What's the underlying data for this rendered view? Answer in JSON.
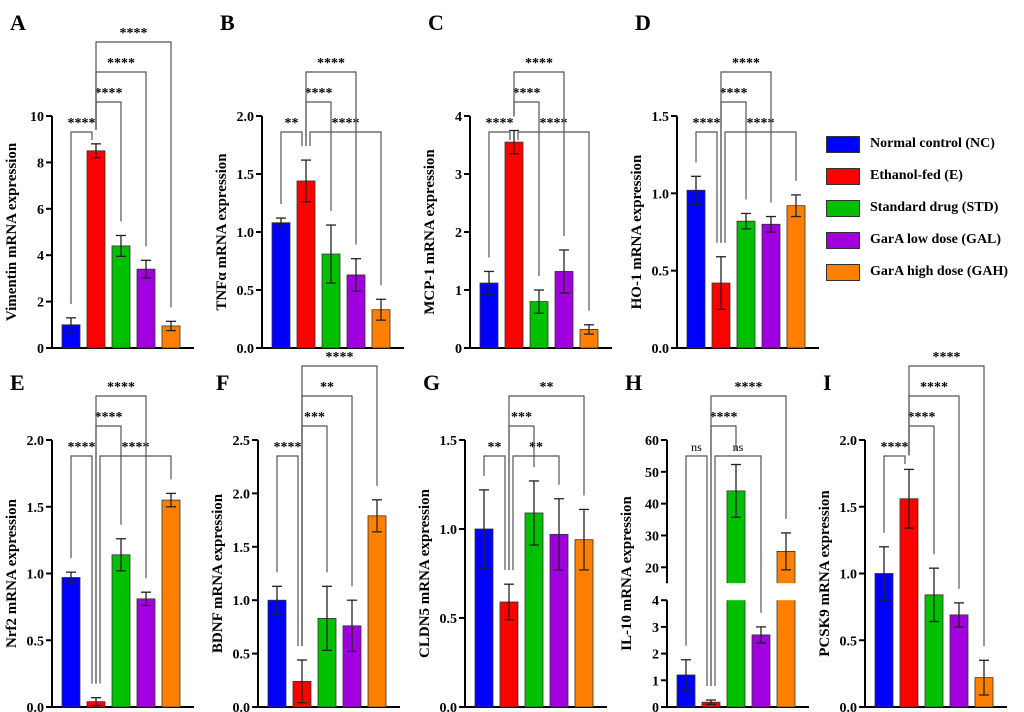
{
  "legend": [
    {
      "label": "Normal control (NC)",
      "color": "#0000ff"
    },
    {
      "label": "Ethanol-fed (E)",
      "color": "#ff0000"
    },
    {
      "label": "Standard drug (STD)",
      "color": "#00c000"
    },
    {
      "label": "GarA low dose (GAL)",
      "color": "#a000e0"
    },
    {
      "label": "GarA high dose (GAH)",
      "color": "#ff8000"
    }
  ],
  "chart_data": [
    {
      "panel": "A",
      "type": "bar",
      "ylabel": "Vimentin mRNA expression",
      "ylim": [
        0,
        10
      ],
      "ticks": [
        "0",
        "2",
        "4",
        "6",
        "8",
        "10"
      ],
      "tick_values": [
        0,
        2,
        4,
        6,
        8,
        10
      ],
      "values": [
        1.0,
        8.5,
        4.4,
        3.4,
        0.95
      ],
      "errors": [
        0.3,
        0.3,
        0.45,
        0.38,
        0.2
      ],
      "comparisons": [
        {
          "a": 0,
          "b": 1,
          "label": "****"
        },
        {
          "a": 1,
          "b": 2,
          "label": "****"
        },
        {
          "a": 1,
          "b": 3,
          "label": "****"
        },
        {
          "a": 1,
          "b": 4,
          "label": "****"
        }
      ]
    },
    {
      "panel": "B",
      "type": "bar",
      "ylabel": "TNFα mRNA expression",
      "ylim": [
        0,
        2
      ],
      "ticks": [
        "0.0",
        "0.5",
        "1.0",
        "1.5",
        "2.0"
      ],
      "tick_values": [
        0,
        0.5,
        1,
        1.5,
        2
      ],
      "values": [
        1.08,
        1.44,
        0.81,
        0.63,
        0.33
      ],
      "errors": [
        0.04,
        0.18,
        0.25,
        0.14,
        0.09
      ],
      "comparisons": [
        {
          "a": 0,
          "b": 1,
          "label": "**"
        },
        {
          "a": 1,
          "b": 4,
          "label": "****",
          "same_level": true
        },
        {
          "a": 1,
          "b": 2,
          "label": "****"
        },
        {
          "a": 1,
          "b": 3,
          "label": "****"
        }
      ]
    },
    {
      "panel": "C",
      "type": "bar",
      "ylabel": "MCP-1 mRNA expression",
      "ylim": [
        0,
        4
      ],
      "ticks": [
        "0",
        "1",
        "2",
        "3",
        "4"
      ],
      "tick_values": [
        0,
        1,
        2,
        3,
        4
      ],
      "values": [
        1.12,
        3.55,
        0.8,
        1.32,
        0.32
      ],
      "errors": [
        0.2,
        0.2,
        0.2,
        0.37,
        0.08
      ],
      "comparisons": [
        {
          "a": 0,
          "b": 1,
          "label": "****"
        },
        {
          "a": 1,
          "b": 4,
          "label": "****",
          "same_level": true
        },
        {
          "a": 1,
          "b": 2,
          "label": "****"
        },
        {
          "a": 1,
          "b": 3,
          "label": "****"
        }
      ]
    },
    {
      "panel": "D",
      "type": "bar",
      "ylabel": "HO-1 mRNA expression",
      "ylim": [
        0,
        1.5
      ],
      "ticks": [
        "0.0",
        "0.5",
        "1.0",
        "1.5"
      ],
      "tick_values": [
        0,
        0.5,
        1,
        1.5
      ],
      "values": [
        1.02,
        0.42,
        0.82,
        0.8,
        0.92
      ],
      "errors": [
        0.09,
        0.17,
        0.05,
        0.05,
        0.07
      ],
      "comparisons": [
        {
          "a": 0,
          "b": 1,
          "label": "****"
        },
        {
          "a": 1,
          "b": 4,
          "label": "****",
          "same_level": true
        },
        {
          "a": 1,
          "b": 2,
          "label": "****"
        },
        {
          "a": 1,
          "b": 3,
          "label": "****"
        }
      ]
    },
    {
      "panel": "E",
      "type": "bar",
      "ylabel": "Nrf2 mRNA expression",
      "ylim": [
        0,
        2
      ],
      "ticks": [
        "0.0",
        "0.5",
        "1.0",
        "1.5",
        "2.0"
      ],
      "tick_values": [
        0,
        0.5,
        1,
        1.5,
        2
      ],
      "values": [
        0.97,
        0.04,
        1.14,
        0.81,
        1.55
      ],
      "errors": [
        0.04,
        0.03,
        0.12,
        0.05,
        0.05
      ],
      "comparisons": [
        {
          "a": 0,
          "b": 1,
          "label": "****"
        },
        {
          "a": 1,
          "b": 4,
          "label": "****",
          "same_level": true
        },
        {
          "a": 1,
          "b": 2,
          "label": "****"
        },
        {
          "a": 1,
          "b": 3,
          "label": "****"
        }
      ]
    },
    {
      "panel": "F",
      "type": "bar",
      "ylabel": "BDNF mRNA expression",
      "ylim": [
        0,
        2.5
      ],
      "ticks": [
        "0.0",
        "0.5",
        "1.0",
        "1.5",
        "2.0",
        "2.5"
      ],
      "tick_values": [
        0,
        0.5,
        1,
        1.5,
        2,
        2.5
      ],
      "values": [
        1.0,
        0.24,
        0.83,
        0.76,
        1.79
      ],
      "errors": [
        0.13,
        0.2,
        0.3,
        0.24,
        0.15
      ],
      "comparisons": [
        {
          "a": 0,
          "b": 1,
          "label": "****"
        },
        {
          "a": 1,
          "b": 2,
          "label": "***"
        },
        {
          "a": 1,
          "b": 3,
          "label": "**"
        },
        {
          "a": 1,
          "b": 4,
          "label": "****"
        }
      ]
    },
    {
      "panel": "G",
      "type": "bar",
      "ylabel": "CLDN5 mRNA expression",
      "ylim": [
        0,
        1.5
      ],
      "ticks": [
        "0.0",
        "0.5",
        "1.0",
        "1.5"
      ],
      "tick_values": [
        0,
        0.5,
        1,
        1.5
      ],
      "values": [
        1.0,
        0.59,
        1.09,
        0.97,
        0.94
      ],
      "errors": [
        0.22,
        0.1,
        0.18,
        0.2,
        0.17
      ],
      "comparisons": [
        {
          "a": 0,
          "b": 1,
          "label": "**"
        },
        {
          "a": 1,
          "b": 3,
          "label": "**",
          "same_level": true
        },
        {
          "a": 1,
          "b": 2,
          "label": "***"
        },
        {
          "a": 1,
          "b": 4,
          "label": "**"
        }
      ]
    },
    {
      "panel": "H",
      "type": "bar",
      "ylabel": "IL-10 mRNA expression",
      "ylim": [
        0,
        60
      ],
      "axis_break": {
        "lower": [
          0,
          4
        ],
        "upper": [
          15,
          60
        ]
      },
      "ticks": [
        "0",
        "1",
        "2",
        "3",
        "4",
        "20",
        "30",
        "40",
        "50",
        "60"
      ],
      "tick_values": [
        0,
        1,
        2,
        3,
        4,
        20,
        30,
        40,
        50,
        60
      ],
      "values": [
        1.2,
        0.18,
        44,
        2.7,
        25
      ],
      "errors": [
        0.57,
        0.08,
        8.3,
        0.3,
        5.8
      ],
      "comparisons": [
        {
          "a": 0,
          "b": 1,
          "label": "ns"
        },
        {
          "a": 1,
          "b": 3,
          "label": "ns",
          "same_level": true
        },
        {
          "a": 1,
          "b": 2,
          "label": "****"
        },
        {
          "a": 1,
          "b": 4,
          "label": "****"
        }
      ]
    },
    {
      "panel": "I",
      "type": "bar",
      "ylabel": "PCSK9 mRNA expression",
      "ylim": [
        0,
        2
      ],
      "ticks": [
        "0.0",
        "0.5",
        "1.0",
        "1.5",
        "2.0"
      ],
      "tick_values": [
        0,
        0.5,
        1,
        1.5,
        2
      ],
      "values": [
        1.0,
        1.56,
        0.84,
        0.69,
        0.22
      ],
      "errors": [
        0.2,
        0.22,
        0.2,
        0.09,
        0.13
      ],
      "comparisons": [
        {
          "a": 0,
          "b": 1,
          "label": "****"
        },
        {
          "a": 1,
          "b": 2,
          "label": "****"
        },
        {
          "a": 1,
          "b": 3,
          "label": "****"
        },
        {
          "a": 1,
          "b": 4,
          "label": "****"
        }
      ]
    }
  ]
}
